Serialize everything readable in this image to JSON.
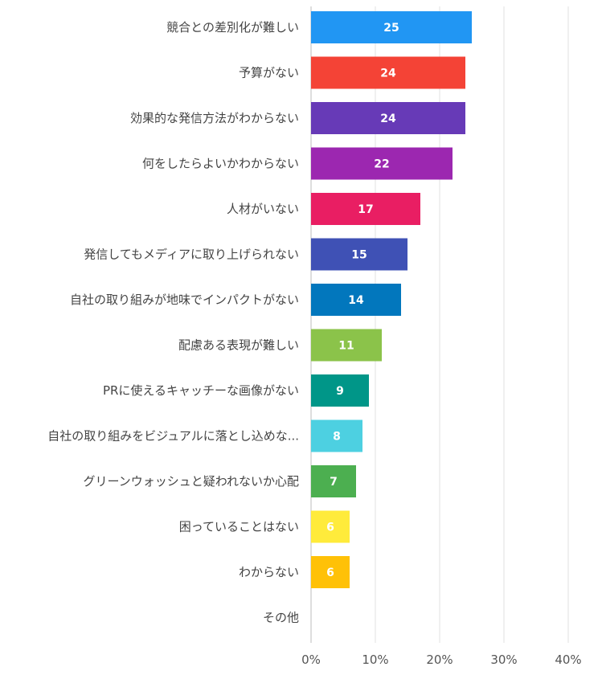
{
  "chart_data": {
    "type": "bar",
    "orientation": "horizontal",
    "title": "",
    "xlabel": "",
    "ylabel": "",
    "xlim": [
      0,
      45
    ],
    "xticks": [
      0,
      10,
      20,
      30,
      40
    ],
    "xtick_labels": [
      "0%",
      "10%",
      "20%",
      "30%",
      "40%"
    ],
    "grid": true,
    "legend": "none",
    "categories": [
      "競合との差別化が難しい",
      "予算がない",
      "効果的な発信方法がわからない",
      "何をしたらよいかわからない",
      "人材がいない",
      "発信してもメディアに取り上げられない",
      "自社の取り組みが地味でインパクトがない",
      "配慮ある表現が難しい",
      "PRに使えるキャッチーな画像がない",
      "自社の取り組みをビジュアルに落とし込めな...",
      "グリーンウォッシュと疑われないか心配",
      "困っていることはない",
      "わからない",
      "その他"
    ],
    "values": [
      25,
      24,
      24,
      22,
      17,
      15,
      14,
      11,
      9,
      8,
      7,
      6,
      6,
      0
    ],
    "value_labels": [
      "25",
      "24",
      "24",
      "22",
      "17",
      "15",
      "14",
      "11",
      "9",
      "8",
      "7",
      "6",
      "6",
      ""
    ],
    "colors": [
      "#2196F3",
      "#F44336",
      "#673AB7",
      "#9C27B0",
      "#E91E63",
      "#3F51B5",
      "#0277BD",
      "#8BC34A",
      "#009688",
      "#4DD0E1",
      "#4CAF50",
      "#FFEB3B",
      "#FFC107",
      "#9E9E9E"
    ]
  }
}
